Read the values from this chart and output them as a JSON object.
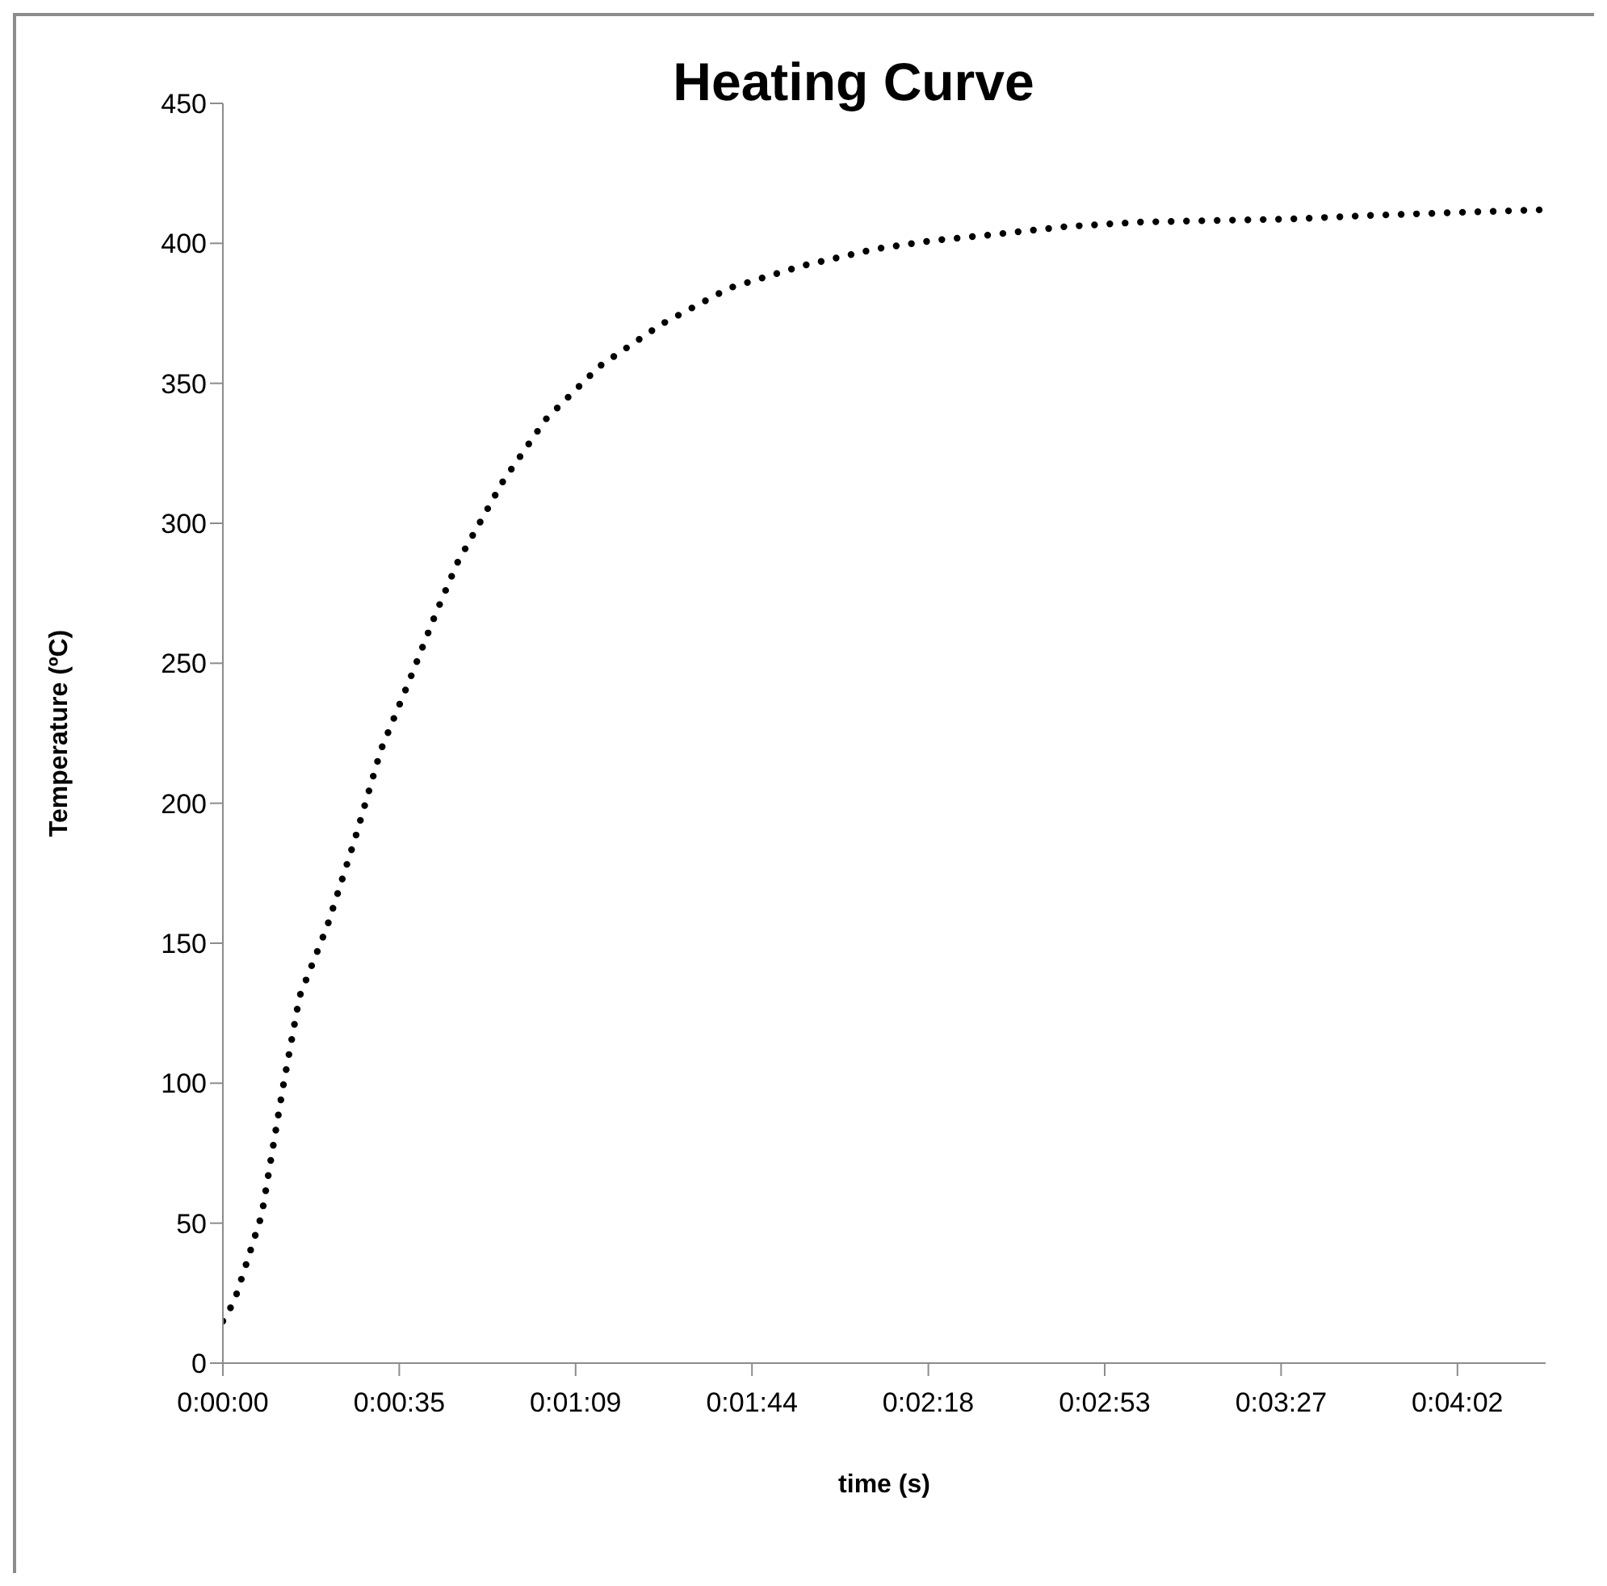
{
  "chart_data": {
    "type": "line",
    "title": "Heating Curve",
    "xlabel": "time (s)",
    "ylabel": "Temperature (ºC)",
    "x": [
      0,
      2.2,
      4.5,
      7.6,
      9.6,
      11.8,
      15,
      20.4,
      25.8,
      30.9,
      36.3,
      41.7,
      45.9,
      54.8,
      63.1,
      73.6,
      85.7,
      99,
      113.4,
      127.7,
      138.9,
      150,
      165,
      179.6,
      195,
      209,
      225,
      241,
      258.3
    ],
    "series": [
      {
        "color": "#000000",
        "values": [
          15,
          22,
          35,
          53,
          75,
          99,
          131,
          156,
          187,
          219,
          243,
          268,
          286,
          315,
          337,
          356,
          371,
          384,
          392,
          398,
          401,
          403,
          406,
          407.6,
          408.2,
          408.7,
          410,
          411,
          412
        ]
      }
    ],
    "xlim": [
      0,
      258.75
    ],
    "xticks": [
      {
        "value": 0,
        "label": "0:00:00"
      },
      {
        "value": 34.5,
        "label": "0:00:35"
      },
      {
        "value": 69,
        "label": "0:01:09"
      },
      {
        "value": 103.5,
        "label": "0:01:44"
      },
      {
        "value": 138,
        "label": "0:02:18"
      },
      {
        "value": 172.5,
        "label": "0:02:53"
      },
      {
        "value": 207,
        "label": "0:03:27"
      },
      {
        "value": 241.5,
        "label": "0:04:02"
      }
    ],
    "ylim": [
      0,
      450
    ],
    "yticks": [
      0,
      50,
      100,
      150,
      200,
      250,
      300,
      350,
      400,
      450
    ],
    "grid": false,
    "legend": false,
    "marker": "none",
    "line_style": "dotted"
  }
}
